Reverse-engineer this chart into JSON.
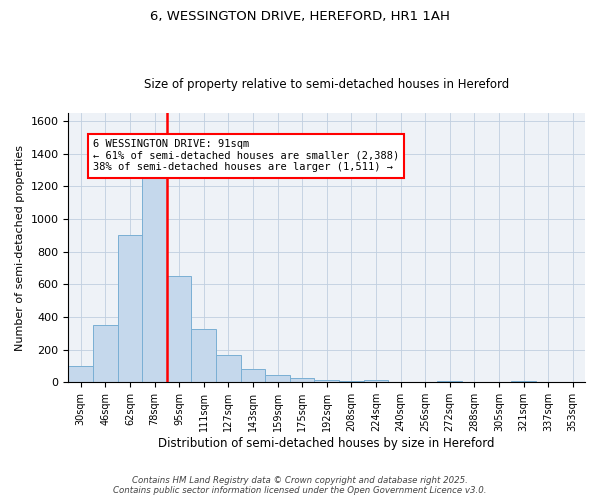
{
  "title1": "6, WESSINGTON DRIVE, HEREFORD, HR1 1AH",
  "title2": "Size of property relative to semi-detached houses in Hereford",
  "xlabel": "Distribution of semi-detached houses by size in Hereford",
  "ylabel": "Number of semi-detached properties",
  "categories": [
    "30sqm",
    "46sqm",
    "62sqm",
    "78sqm",
    "95sqm",
    "111sqm",
    "127sqm",
    "143sqm",
    "159sqm",
    "175sqm",
    "192sqm",
    "208sqm",
    "224sqm",
    "240sqm",
    "256sqm",
    "272sqm",
    "288sqm",
    "305sqm",
    "321sqm",
    "337sqm",
    "353sqm"
  ],
  "values": [
    100,
    350,
    900,
    1300,
    650,
    325,
    165,
    80,
    45,
    25,
    15,
    5,
    15,
    3,
    3,
    8,
    3,
    3,
    8,
    3,
    3
  ],
  "bar_color": "#c5d8ec",
  "bar_edge_color": "#7aafd4",
  "vline_color": "red",
  "vline_x": 3.5,
  "property_label": "6 WESSINGTON DRIVE: 91sqm",
  "smaller_text": "← 61% of semi-detached houses are smaller (2,388)",
  "larger_text": "38% of semi-detached houses are larger (1,511) →",
  "ylim": [
    0,
    1650
  ],
  "yticks": [
    0,
    200,
    400,
    600,
    800,
    1000,
    1200,
    1400,
    1600
  ],
  "footer1": "Contains HM Land Registry data © Crown copyright and database right 2025.",
  "footer2": "Contains public sector information licensed under the Open Government Licence v3.0.",
  "bg_color": "#eef2f7",
  "grid_color": "#c0cfe0"
}
